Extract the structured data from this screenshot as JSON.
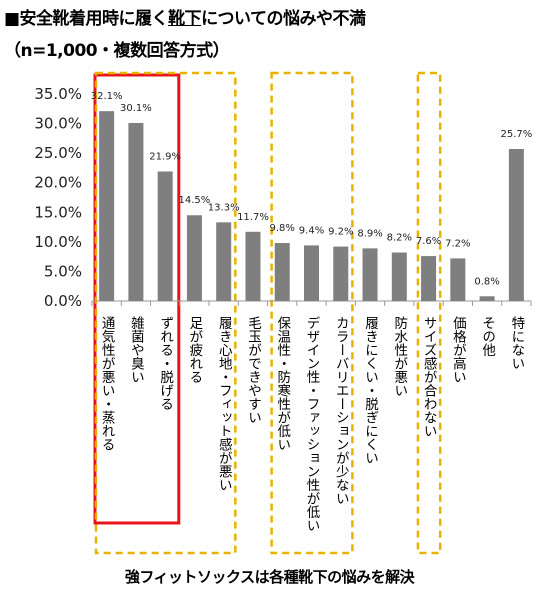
{
  "header": {
    "title_prefix": "■安全靴着用時に履く",
    "title_underlined": "靴下",
    "title_suffix": "についての悩みや不満",
    "subtitle": "（n=1,000・複数回答方式）"
  },
  "footer": {
    "text": "強フィットソックスは各種靴下の悩みを解決"
  },
  "chart_data": {
    "type": "bar",
    "categories": [
      "通気性が悪い・蒸れる",
      "雑菌や臭い",
      "ずれる・脱げる",
      "足が疲れる",
      "履き心地・フィット感が悪い",
      "毛玉ができやすい",
      "保温性・防寒性が低い",
      "デザイン性・ファッション性が低い",
      "カラーバリエーションが少ない",
      "履きにくい・脱ぎにくい",
      "防水性が悪い",
      "サイズ感が合わない",
      "価格が高い",
      "その他",
      "特にない"
    ],
    "values": [
      32.1,
      30.1,
      21.9,
      14.5,
      13.3,
      11.7,
      9.8,
      9.4,
      9.2,
      8.9,
      8.2,
      7.6,
      7.2,
      0.8,
      25.7
    ],
    "data_labels": [
      "32.1%",
      "30.1%",
      "21.9%",
      "14.5%",
      "13.3%",
      "11.7%",
      "9.8%",
      "9.4%",
      "9.2%",
      "8.9%",
      "8.2%",
      "7.6%",
      "7.2%",
      "0.8%",
      "25.7%"
    ],
    "y_ticks": [
      "0.0%",
      "5.0%",
      "10.0%",
      "15.0%",
      "20.0%",
      "25.0%",
      "30.0%",
      "35.0%"
    ],
    "ylim": [
      0,
      35
    ],
    "grid": false,
    "bar_color": "#7f7f7f",
    "highlight_groups": [
      {
        "style": "solid",
        "color": "#e8141b",
        "from_index": 0,
        "to_index": 2
      },
      {
        "style": "dashed",
        "color": "#e8b100",
        "from_index": 0,
        "to_index": 4
      },
      {
        "style": "dashed",
        "color": "#e8b100",
        "from_index": 6,
        "to_index": 8
      },
      {
        "style": "dashed",
        "color": "#e8b100",
        "from_index": 11,
        "to_index": 11
      }
    ]
  }
}
